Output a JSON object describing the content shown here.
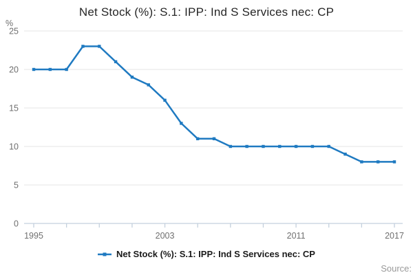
{
  "title": "Net Stock (%): S.1: IPP: Ind S Services nec: CP",
  "y_axis_unit_label": "%",
  "legend": {
    "label": "Net Stock (%): S.1: IPP: Ind S Services nec: CP"
  },
  "source_label": "Source:",
  "colors": {
    "line": "#1f7ac1",
    "grid": "#e6e6e6",
    "axis": "#c4d0dd",
    "tick_text": "#6f6f6f",
    "title_text": "#262626",
    "legend_text": "#1a1a1a",
    "source_text": "#999999"
  },
  "chart_data": {
    "type": "line",
    "title": "Net Stock (%): S.1: IPP: Ind S Services nec: CP",
    "xlabel": "",
    "ylabel": "%",
    "series": [
      {
        "name": "Net Stock (%): S.1: IPP: Ind S Services nec: CP",
        "x": [
          1995,
          1996,
          1997,
          1998,
          1999,
          2000,
          2001,
          2002,
          2003,
          2004,
          2005,
          2006,
          2007,
          2008,
          2009,
          2010,
          2011,
          2012,
          2013,
          2014,
          2015,
          2016,
          2017
        ],
        "values": [
          20,
          20,
          20,
          23,
          23,
          21,
          19,
          18,
          16,
          13,
          11,
          11,
          10,
          10,
          10,
          10,
          10,
          10,
          10,
          9,
          8,
          8,
          8
        ]
      }
    ],
    "ylim": [
      0,
      25
    ],
    "yticks": [
      0,
      5,
      10,
      15,
      20,
      25
    ],
    "xlim": [
      1995,
      2017
    ],
    "xtick_interval": 2,
    "xtick_labels_shown": [
      1995,
      2003,
      2011,
      2017
    ],
    "grid": "horizontal",
    "marker": "square",
    "legend_position": "bottom"
  }
}
